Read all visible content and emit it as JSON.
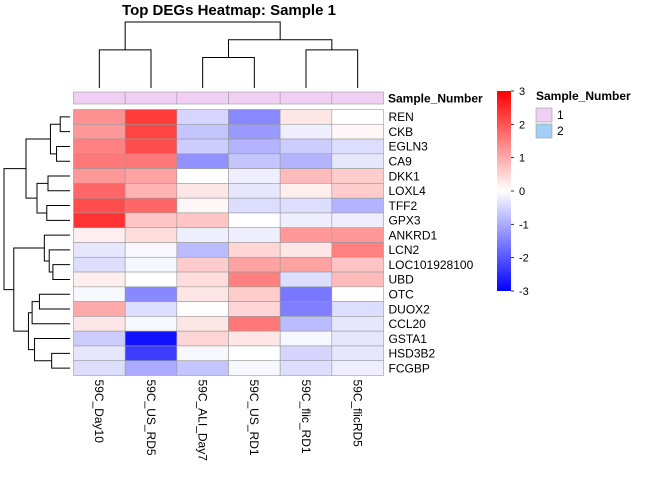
{
  "chart_data": {
    "type": "heatmap",
    "title": "Top DEGs Heatmap: Sample 1",
    "columns": [
      "59C_Day10",
      "59C_US_RD5",
      "59C_ALI_Day7",
      "59C_US_RD1",
      "59C_flic_RD1",
      "59C_flicRD5"
    ],
    "rows": [
      "REN",
      "CKB",
      "EGLN3",
      "CA9",
      "DKK1",
      "LOXL4",
      "TFF2",
      "GPX3",
      "ANKRD1",
      "LCN2",
      "LOC101928100",
      "UBD",
      "OTC",
      "DUOX2",
      "CCL20",
      "GSTA1",
      "HSD3B2",
      "FCGBP"
    ],
    "values": [
      [
        1.3,
        2.3,
        -0.5,
        -1.4,
        0.3,
        0.0
      ],
      [
        1.2,
        2.2,
        -0.7,
        -1.2,
        -0.2,
        0.1
      ],
      [
        1.5,
        2.1,
        -0.6,
        -0.9,
        -0.6,
        -0.4
      ],
      [
        1.6,
        1.6,
        -1.3,
        -0.7,
        -0.9,
        -0.3
      ],
      [
        1.2,
        1.1,
        0.0,
        -0.2,
        0.8,
        0.6
      ],
      [
        1.8,
        0.9,
        0.3,
        -0.3,
        0.2,
        0.6
      ],
      [
        2.1,
        1.8,
        0.1,
        -0.4,
        -0.4,
        -0.9
      ],
      [
        2.4,
        0.7,
        0.7,
        0.0,
        -0.2,
        -0.2
      ],
      [
        0.2,
        0.4,
        -0.2,
        -0.2,
        1.2,
        1.2
      ],
      [
        -0.3,
        -0.1,
        -0.8,
        0.5,
        0.3,
        1.5
      ],
      [
        -0.4,
        -0.1,
        0.6,
        1.1,
        1.1,
        0.7
      ],
      [
        0.2,
        0.0,
        0.4,
        1.5,
        -0.4,
        0.8
      ],
      [
        -0.1,
        -1.4,
        0.3,
        0.6,
        -1.6,
        0.0
      ],
      [
        1.0,
        -0.4,
        0.0,
        0.5,
        -1.5,
        -0.4
      ],
      [
        0.3,
        -0.1,
        0.3,
        1.6,
        -0.8,
        -0.3
      ],
      [
        -0.6,
        -2.8,
        0.5,
        0.3,
        -0.1,
        -0.3
      ],
      [
        -0.3,
        -2.3,
        -0.1,
        0.0,
        -0.5,
        -0.3
      ],
      [
        -0.4,
        -1.0,
        -0.7,
        -0.1,
        -0.4,
        -0.2
      ]
    ],
    "color_scale": {
      "min": -3,
      "mid": 0,
      "max": 3,
      "low_color": "#0000FF",
      "mid_color": "#FFFFFF",
      "high_color": "#FF0000",
      "ticks": [
        3,
        2,
        1,
        0,
        -1,
        -2,
        -3
      ]
    },
    "annotation": {
      "name": "Sample_Number",
      "values": [
        "1",
        "1",
        "1",
        "1",
        "1",
        "1"
      ],
      "legend": [
        {
          "label": "1",
          "color": "#F1CFF5"
        },
        {
          "label": "2",
          "color": "#A3CFF6"
        }
      ]
    },
    "column_dendrogram": [
      {
        "a": 0,
        "b": 1,
        "height": 1.5
      },
      {
        "a": 4,
        "b": 5,
        "height": 1.5
      },
      {
        "a": 2,
        "b": 3,
        "height": 1.2
      },
      {
        "a": "c2",
        "b": "c1",
        "height": 1.9
      },
      {
        "a": "c0",
        "b": "c3",
        "height": 2.6
      }
    ],
    "row_dendrogram": [
      {
        "a": 0,
        "b": 1,
        "height": 0.4
      },
      {
        "a": 2,
        "b": 3,
        "height": 0.55
      },
      {
        "a": "r0",
        "b": "r1",
        "height": 0.8
      },
      {
        "a": 4,
        "b": 5,
        "height": 0.9
      },
      {
        "a": 6,
        "b": 7,
        "height": 0.95
      },
      {
        "a": "r3",
        "b": "r4",
        "height": 1.35
      },
      {
        "a": "r2",
        "b": "r5",
        "height": 1.8
      },
      {
        "a": 10,
        "b": 11,
        "height": 0.7
      },
      {
        "a": 9,
        "b": "r7",
        "height": 0.85
      },
      {
        "a": 8,
        "b": "r8",
        "height": 1.05
      },
      {
        "a": 12,
        "b": 13,
        "height": 1.25
      },
      {
        "a": "r10",
        "b": 14,
        "height": 1.55
      },
      {
        "a": 16,
        "b": 17,
        "height": 0.75
      },
      {
        "a": 15,
        "b": "r12",
        "height": 1.45
      },
      {
        "a": "r11",
        "b": "r13",
        "height": 1.7
      },
      {
        "a": "r9",
        "b": "r14",
        "height": 2.3
      },
      {
        "a": "r6",
        "b": "r15",
        "height": 2.7
      }
    ]
  }
}
